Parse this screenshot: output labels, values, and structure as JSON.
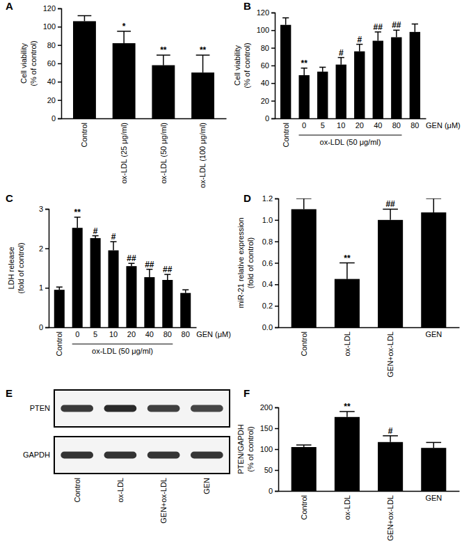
{
  "chart_data": [
    {
      "type": "bar",
      "title": "A",
      "color": "#000000",
      "ylabel": [
        "Cell viability",
        "(% of control)"
      ],
      "categories": [
        "Control",
        "ox-LDL (25 μg/ml)",
        "ox-LDL (50 μg/ml)",
        "ox-LDL (100 μg/ml)"
      ],
      "values": [
        106,
        82,
        58,
        50
      ],
      "errors": [
        6,
        13,
        11,
        19
      ],
      "annotations": [
        null,
        "*",
        "**",
        "**"
      ],
      "ylim": [
        0,
        120
      ],
      "yticks": [
        0,
        20,
        40,
        60,
        80,
        100,
        120
      ]
    },
    {
      "type": "bar",
      "title": "B",
      "color": "#000000",
      "ylabel": [
        "Cell viability",
        "(% of control)"
      ],
      "categories": [
        "Control",
        "0",
        "5",
        "10",
        "20",
        "40",
        "80",
        "80"
      ],
      "values": [
        106,
        49,
        53,
        61,
        76,
        88,
        92,
        98
      ],
      "errors": [
        8,
        8,
        5,
        8,
        8,
        10,
        8,
        9
      ],
      "annotations": [
        null,
        "**",
        null,
        "#",
        "#",
        "##",
        "##",
        null
      ],
      "group": {
        "label": "ox-LDL (50 μg/ml)",
        "start": 1,
        "end": 6
      },
      "unit_label": "GEN (μM)",
      "ylim": [
        0,
        120
      ],
      "yticks": [
        0,
        20,
        40,
        60,
        80,
        100,
        120
      ]
    },
    {
      "type": "bar",
      "title": "C",
      "color": "#000000",
      "ylabel": [
        "LDH release",
        "(fold of control)"
      ],
      "categories": [
        "Control",
        "0",
        "5",
        "10",
        "20",
        "40",
        "80",
        "80"
      ],
      "values": [
        0.95,
        2.52,
        2.26,
        1.95,
        1.55,
        1.27,
        1.2,
        0.87
      ],
      "errors": [
        0.07,
        0.27,
        0.06,
        0.22,
        0.07,
        0.2,
        0.14,
        0.08
      ],
      "annotations": [
        null,
        "**",
        "#",
        "#",
        "##",
        "##",
        "##",
        null
      ],
      "group": {
        "label": "ox-LDL (50 μg/ml)",
        "start": 1,
        "end": 6
      },
      "unit_label": "GEN (μM)",
      "ylim": [
        0,
        3
      ],
      "yticks": [
        0,
        1,
        2,
        3
      ]
    },
    {
      "type": "bar",
      "title": "D",
      "color": "#000000",
      "ylabel": [
        "miR-21 relative expression",
        "(fold of control)"
      ],
      "categories": [
        "Control",
        "ox-LDL",
        "GEN+ox-LDL",
        "GEN"
      ],
      "values": [
        1.1,
        0.45,
        1.0,
        1.07
      ],
      "errors": [
        0.1,
        0.15,
        0.1,
        0.13
      ],
      "annotations": [
        null,
        "**",
        "##",
        null
      ],
      "ylim": [
        0,
        1.2
      ],
      "yticks": [
        {
          "value": 0,
          "label": "0.0"
        },
        0.2,
        0.4,
        0.6,
        0.8,
        {
          "value": 1,
          "label": "1.0"
        },
        1.2
      ]
    },
    {
      "type": "blot",
      "title": "E",
      "rows": [
        "PTEN",
        "GAPDH"
      ],
      "categories": [
        "Control",
        "ox-LDL",
        "GEN+ox-LDL",
        "GEN"
      ]
    },
    {
      "type": "bar",
      "title": "F",
      "color": "#000000",
      "ylabel": [
        "PTEN/GAPDH",
        "(% of control)"
      ],
      "categories": [
        "Control",
        "ox-LDL",
        "GEN+ox-LDL",
        "GEN"
      ],
      "values": [
        105,
        177,
        117,
        103
      ],
      "errors": [
        5,
        13,
        15,
        13
      ],
      "annotations": [
        null,
        "**",
        "#",
        null
      ],
      "ylim": [
        0,
        200
      ],
      "yticks": [
        0,
        50,
        100,
        150,
        200
      ]
    }
  ]
}
